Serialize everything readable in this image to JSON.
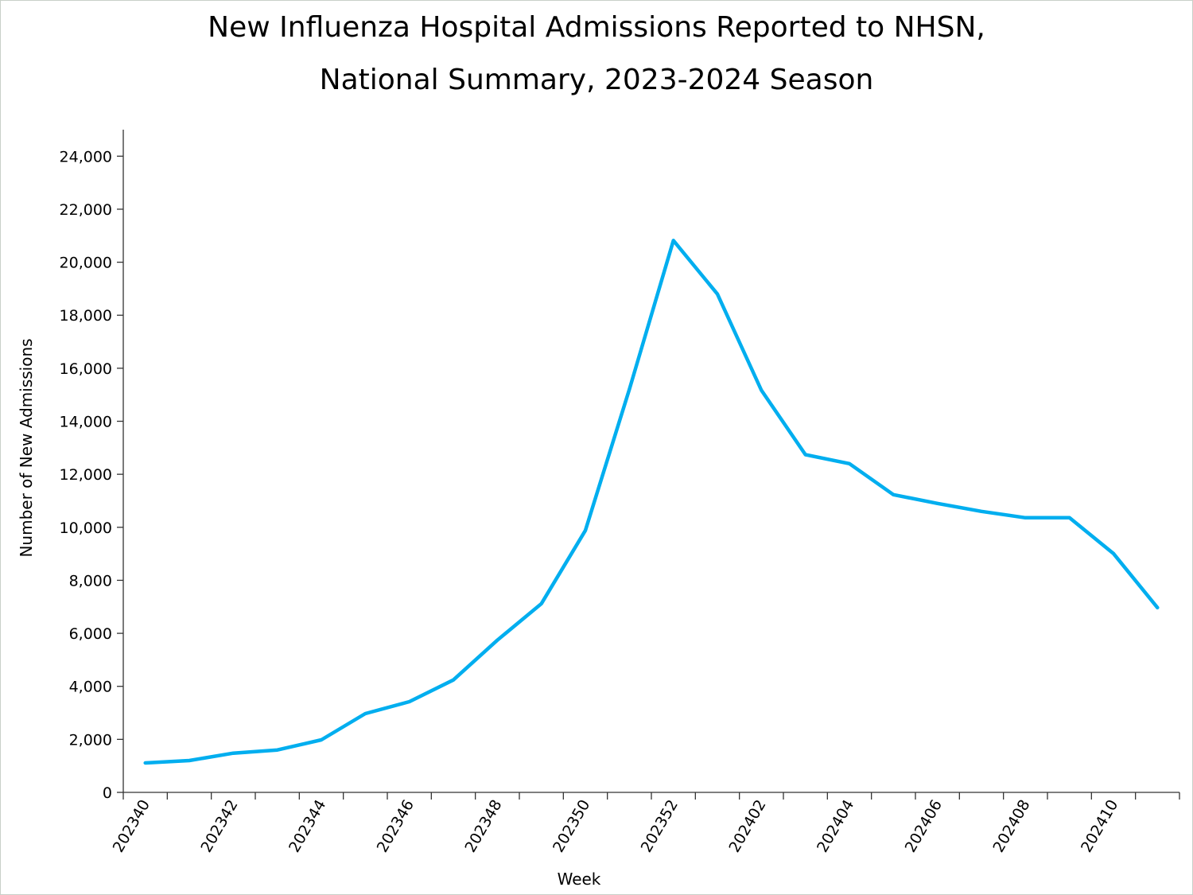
{
  "chart_data": {
    "type": "line",
    "title": [
      "New Influenza Hospital Admissions Reported to NHSN,",
      "National Summary, 2023-2024 Season"
    ],
    "xlabel": "Week",
    "ylabel": "Number of New Admissions",
    "ylim": [
      0,
      25000
    ],
    "yticks": [
      0,
      2000,
      4000,
      6000,
      8000,
      10000,
      12000,
      14000,
      16000,
      18000,
      20000,
      22000,
      24000
    ],
    "ytick_labels": [
      "0",
      "2,000",
      "4,000",
      "6,000",
      "8,000",
      "10,000",
      "12,000",
      "14,000",
      "16,000",
      "18,000",
      "20,000",
      "22,000",
      "24,000"
    ],
    "categories": [
      "202340",
      "202341",
      "202342",
      "202343",
      "202344",
      "202345",
      "202346",
      "202347",
      "202348",
      "202349",
      "202350",
      "202351",
      "202352",
      "202401",
      "202402",
      "202403",
      "202404",
      "202405",
      "202406",
      "202407",
      "202408",
      "202409",
      "202410",
      "202411"
    ],
    "xtick_labels_shown": [
      "202340",
      "202342",
      "202344",
      "202346",
      "202348",
      "202350",
      "202352",
      "202402",
      "202404",
      "202406",
      "202408",
      "202410"
    ],
    "values": [
      1110,
      1200,
      1480,
      1600,
      1980,
      2970,
      3420,
      4240,
      5740,
      7120,
      9880,
      15200,
      20820,
      18800,
      15170,
      12740,
      12400,
      11230,
      10900,
      10600,
      10360,
      10360,
      9010,
      6970
    ],
    "grid": false,
    "legend": "none",
    "line_color": "#00aeef"
  }
}
